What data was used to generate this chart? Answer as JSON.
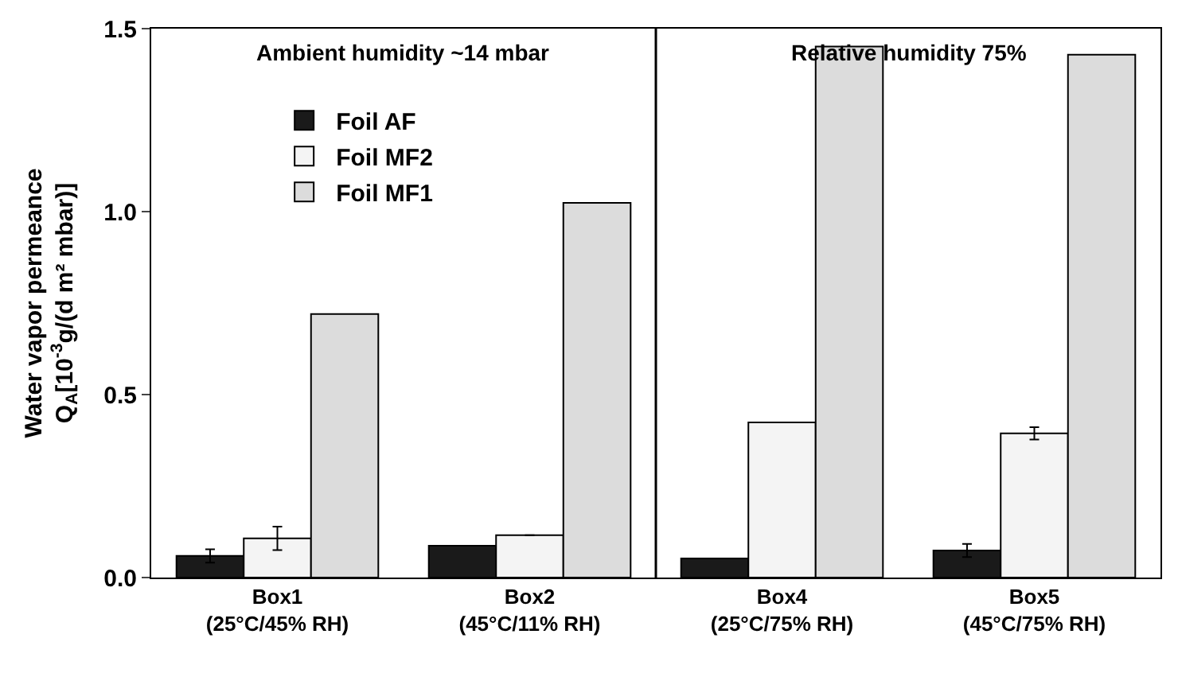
{
  "chart_data": {
    "type": "bar",
    "ylabel": "Water vapor permeance\nQ$_{A}$[10$^{-3}$g/(d m² mbar)]",
    "categories": [
      "Box1\n(25°C/45% RH)",
      "Box2\n(45°C/11% RH)",
      "Box4\n(25°C/75% RH)",
      "Box5\n(45°C/75% RH)"
    ],
    "series": [
      {
        "name": "Foil AF",
        "color": "#1a1a1a",
        "values": [
          0.059,
          0.087,
          0.052,
          0.074
        ],
        "errors": [
          0.018,
          null,
          null,
          0.018
        ]
      },
      {
        "name": "Foil MF2",
        "color": "#f4f4f4",
        "values": [
          0.107,
          0.116,
          0.424,
          0.394
        ],
        "errors": [
          0.032,
          null,
          null,
          0.017
        ]
      },
      {
        "name": "Foil MF1",
        "color": "#dcdcdc",
        "values": [
          0.72,
          1.024,
          1.451,
          1.429
        ]
      }
    ],
    "ylim": [
      0,
      1.5
    ],
    "yticks": [
      {
        "value": 0,
        "label": "0.0"
      },
      0.5,
      {
        "value": 1,
        "label": "1.0"
      },
      1.5
    ],
    "annotations": [
      "Ambient humidity ~14 mbar",
      "Relative humidity 75%"
    ],
    "legend": "top left"
  }
}
